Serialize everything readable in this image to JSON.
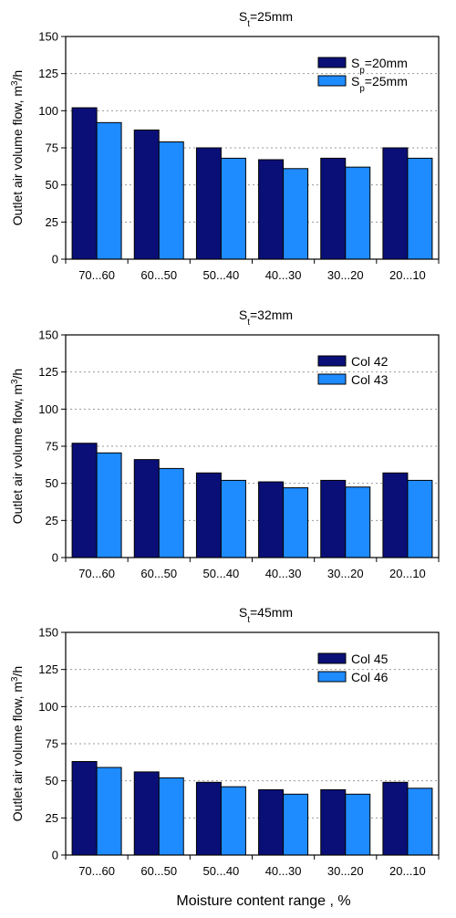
{
  "colors": {
    "series_dark": "#0A0F78",
    "series_light": "#1E8BFF",
    "grid": "#9a9a9a"
  },
  "figure": {
    "xlabel": "Moisture content range , %"
  },
  "chart_data": [
    {
      "type": "bar",
      "title": {
        "main": "S",
        "sub": "t",
        "rest": "=25mm"
      },
      "ylabel": {
        "main": "Outlet air volume flow, m",
        "sup": "3",
        "rest": "/h"
      },
      "ylim": [
        0,
        150
      ],
      "yticks": [
        0,
        25,
        50,
        75,
        100,
        125,
        150
      ],
      "grid": "horizontal dotted",
      "legend_position": "top-right",
      "categories": [
        "70...60",
        "60...50",
        "50...40",
        "40...30",
        "30...20",
        "20...10"
      ],
      "series": [
        {
          "name": {
            "main": "S",
            "sub": "p",
            "rest": "=20mm"
          },
          "color": "#0A0F78",
          "values": [
            102,
            87,
            75,
            67,
            68,
            75
          ]
        },
        {
          "name": {
            "main": "S",
            "sub": "p",
            "rest": "=25mm"
          },
          "color": "#1E8BFF",
          "values": [
            92,
            79,
            68,
            61,
            62,
            68
          ]
        }
      ]
    },
    {
      "type": "bar",
      "title": {
        "main": "S",
        "sub": "t",
        "rest": "=32mm"
      },
      "ylabel": {
        "main": "Outlet air volume flow, m",
        "sup": "3",
        "rest": "/h"
      },
      "ylim": [
        0,
        150
      ],
      "yticks": [
        0,
        25,
        50,
        75,
        100,
        125,
        150
      ],
      "grid": "horizontal dotted",
      "legend_position": "top-right",
      "categories": [
        "70...60",
        "60...50",
        "50...40",
        "40...30",
        "30...20",
        "20...10"
      ],
      "series": [
        {
          "name": {
            "main": "Col 42",
            "sub": "",
            "rest": ""
          },
          "color": "#0A0F78",
          "values": [
            77,
            66,
            57,
            51,
            52,
            57
          ]
        },
        {
          "name": {
            "main": "Col 43",
            "sub": "",
            "rest": ""
          },
          "color": "#1E8BFF",
          "values": [
            70.5,
            60,
            52,
            47,
            47.5,
            52
          ]
        }
      ]
    },
    {
      "type": "bar",
      "title": {
        "main": "S",
        "sub": "t",
        "rest": "=45mm"
      },
      "ylabel": {
        "main": "Outlet air volume flow, m",
        "sup": "3",
        "rest": "/h"
      },
      "ylim": [
        0,
        150
      ],
      "yticks": [
        0,
        25,
        50,
        75,
        100,
        125,
        150
      ],
      "grid": "horizontal dotted",
      "legend_position": "top-right",
      "categories": [
        "70...60",
        "60...50",
        "50...40",
        "40...30",
        "30...20",
        "20...10"
      ],
      "series": [
        {
          "name": {
            "main": "Col 45",
            "sub": "",
            "rest": ""
          },
          "color": "#0A0F78",
          "values": [
            63,
            56,
            49,
            44,
            44,
            49
          ]
        },
        {
          "name": {
            "main": "Col 46",
            "sub": "",
            "rest": ""
          },
          "color": "#1E8BFF",
          "values": [
            59,
            52,
            46,
            41,
            41,
            45
          ]
        }
      ]
    }
  ]
}
